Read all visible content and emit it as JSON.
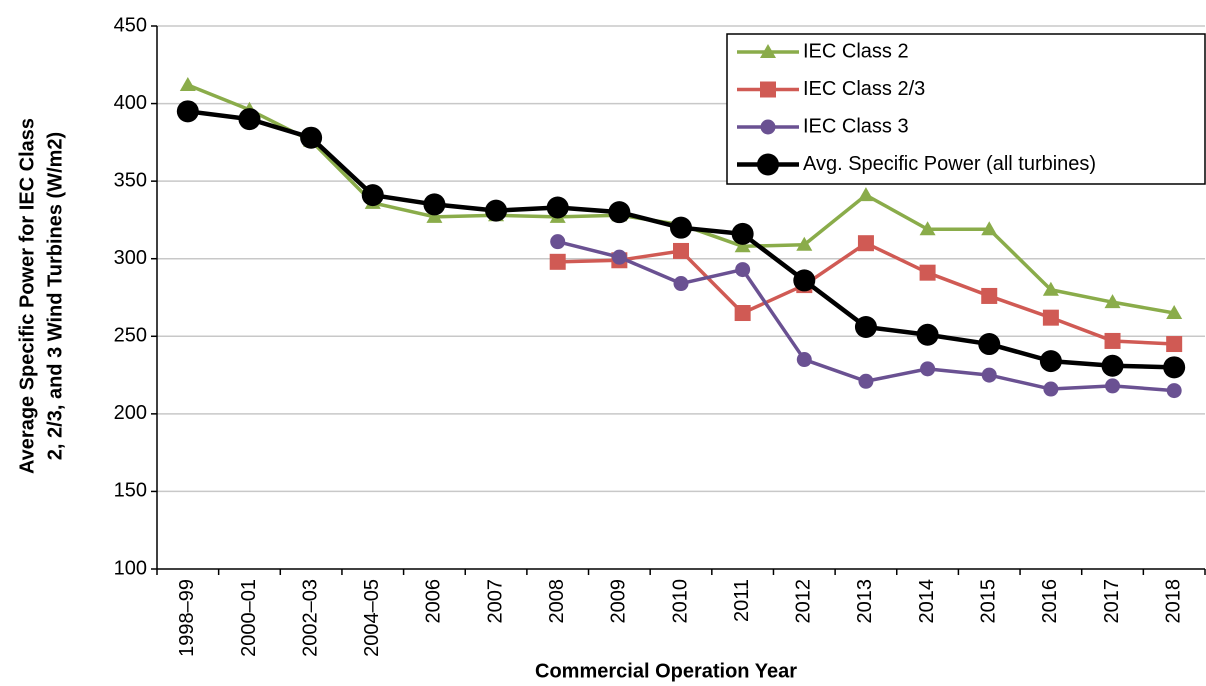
{
  "chart_data": {
    "type": "line",
    "xlabel": "Commercial Operation Year",
    "ylabel": [
      "Average Specific Power for IEC Class",
      "2, 2/3, and 3 Wind Turbines (W/m2)"
    ],
    "categories": [
      "1998–99",
      "2000–01",
      "2002–03",
      "2004–05",
      "2006",
      "2007",
      "2008",
      "2009",
      "2010",
      "2011",
      "2012",
      "2013",
      "2014",
      "2015",
      "2016",
      "2017",
      "2018"
    ],
    "series": [
      {
        "name": "IEC Class 2",
        "color": "#8aac4a",
        "marker": "triangle",
        "values": [
          412,
          396,
          376,
          336,
          327,
          328,
          327,
          328,
          322,
          308,
          309,
          341,
          319,
          319,
          280,
          272,
          265
        ]
      },
      {
        "name": "IEC Class 2/3",
        "color": "#d05a54",
        "marker": "square",
        "values": [
          null,
          null,
          null,
          null,
          null,
          null,
          298,
          299,
          305,
          265,
          283,
          310,
          291,
          276,
          262,
          247,
          245
        ]
      },
      {
        "name": "IEC Class 3",
        "color": "#6a5192",
        "marker": "circle",
        "values": [
          null,
          null,
          null,
          null,
          null,
          null,
          311,
          301,
          284,
          293,
          235,
          221,
          229,
          225,
          216,
          218,
          215
        ]
      },
      {
        "name": "Avg. Specific Power (all turbines)",
        "color": "#000000",
        "marker": "big-circle",
        "values": [
          395,
          390,
          378,
          341,
          335,
          331,
          333,
          330,
          320,
          316,
          286,
          256,
          251,
          245,
          234,
          231,
          230
        ]
      }
    ],
    "ylim": [
      100,
      450
    ],
    "yticks": [
      100,
      150,
      200,
      250,
      300,
      350,
      400,
      450
    ],
    "grid": true,
    "legend": "top-right"
  }
}
